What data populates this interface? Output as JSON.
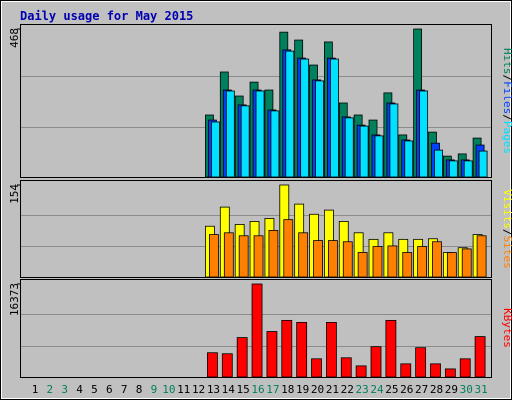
{
  "chart_data": {
    "type": "bar",
    "title": "Daily usage for May 2015",
    "categories": [
      "1",
      "2",
      "3",
      "4",
      "5",
      "6",
      "7",
      "8",
      "9",
      "10",
      "11",
      "12",
      "13",
      "14",
      "15",
      "16",
      "17",
      "18",
      "19",
      "20",
      "21",
      "22",
      "23",
      "24",
      "25",
      "26",
      "27",
      "28",
      "29",
      "30",
      "31"
    ],
    "category_colors": [
      "#000000",
      "#00805c",
      "#00805c",
      "#000000",
      "#000000",
      "#000000",
      "#000000",
      "#000000",
      "#00805c",
      "#00805c",
      "#000000",
      "#000000",
      "#000000",
      "#000000",
      "#000000",
      "#00805c",
      "#00805c",
      "#000000",
      "#000000",
      "#000000",
      "#000000",
      "#000000",
      "#00805c",
      "#00805c",
      "#000000",
      "#000000",
      "#000000",
      "#000000",
      "#000000",
      "#00805c",
      "#00805c"
    ],
    "legend_separator": "/",
    "panels": [
      {
        "ylim": [
          0,
          468
        ],
        "yticks": [
          468
        ],
        "series": [
          {
            "name": "Hits",
            "color": "#00805c",
            "values": [
              0,
              0,
              0,
              0,
              0,
              0,
              0,
              0,
              0,
              0,
              0,
              0,
              196,
              332,
              256,
              300,
              275,
              458,
              433,
              354,
              427,
              234,
              196,
              180,
              266,
              133,
              468,
              142,
              66,
              73,
              123
            ]
          },
          {
            "name": "Files",
            "color": "#0040ff",
            "values": [
              0,
              0,
              0,
              0,
              0,
              0,
              0,
              0,
              0,
              0,
              0,
              0,
              180,
              275,
              228,
              275,
              212,
              402,
              376,
              307,
              376,
              190,
              164,
              133,
              234,
              117,
              275,
              107,
              54,
              54,
              101
            ]
          },
          {
            "name": "Pages",
            "color": "#00e0ff",
            "values": [
              0,
              0,
              0,
              0,
              0,
              0,
              0,
              0,
              0,
              0,
              0,
              0,
              174,
              272,
              225,
              272,
              209,
              398,
              373,
              304,
              373,
              187,
              161,
              130,
              231,
              114,
              272,
              85,
              51,
              51,
              82
            ]
          }
        ]
      },
      {
        "ylim": [
          0,
          154
        ],
        "yticks": [
          154
        ],
        "series": [
          {
            "name": "Visits",
            "color": "#ffff00",
            "values": [
              0,
              0,
              0,
              0,
              0,
              0,
              0,
              0,
              0,
              0,
              0,
              0,
              85,
              117,
              88,
              93,
              98,
              154,
              122,
              105,
              112,
              93,
              74,
              63,
              74,
              63,
              63,
              64,
              41,
              49,
              71
            ]
          },
          {
            "name": "Sites",
            "color": "#ff8000",
            "values": [
              0,
              0,
              0,
              0,
              0,
              0,
              0,
              0,
              0,
              0,
              0,
              0,
              71,
              74,
              69,
              69,
              78,
              96,
              74,
              61,
              61,
              59,
              41,
              51,
              52,
              41,
              51,
              59,
              41,
              47,
              69
            ]
          }
        ]
      },
      {
        "ylim": [
          0,
          16373
        ],
        "yticks": [
          16373
        ],
        "series": [
          {
            "name": "KBytes",
            "color": "#ff0000",
            "values": [
              0,
              0,
              0,
              0,
              0,
              0,
              0,
              0,
              0,
              0,
              0,
              0,
              4271,
              4093,
              6941,
              16373,
              8009,
              9967,
              9611,
              3203,
              9611,
              3381,
              1958,
              5339,
              9967,
              2314,
              5161,
              2314,
              1424,
              3203,
              7119
            ]
          }
        ]
      }
    ]
  }
}
